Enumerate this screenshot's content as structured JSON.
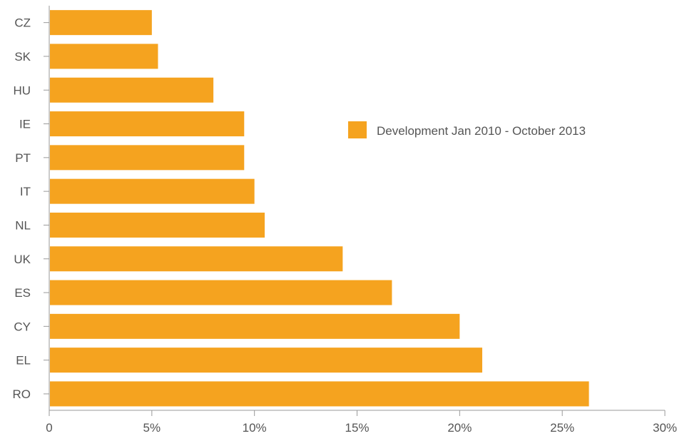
{
  "chart_data": {
    "type": "bar",
    "orientation": "horizontal",
    "categories": [
      "CZ",
      "SK",
      "HU",
      "IE",
      "PT",
      "IT",
      "NL",
      "UK",
      "ES",
      "CY",
      "EL",
      "RO"
    ],
    "series": [
      {
        "name": "Development Jan 2010 - October 2013",
        "color": "#F5A31F",
        "values": [
          5.0,
          5.3,
          8.0,
          9.5,
          9.5,
          10.0,
          10.5,
          14.3,
          16.7,
          20.0,
          21.1,
          26.3
        ]
      }
    ],
    "xlim": [
      0,
      30
    ],
    "x_ticks": [
      0,
      5,
      10,
      15,
      20,
      25,
      30
    ],
    "x_tick_labels": [
      "0",
      "5%",
      "10%",
      "15%",
      "20%",
      "25%",
      "30%"
    ],
    "grid": false,
    "legend_position": "right",
    "title": "",
    "xlabel": "",
    "ylabel": ""
  }
}
